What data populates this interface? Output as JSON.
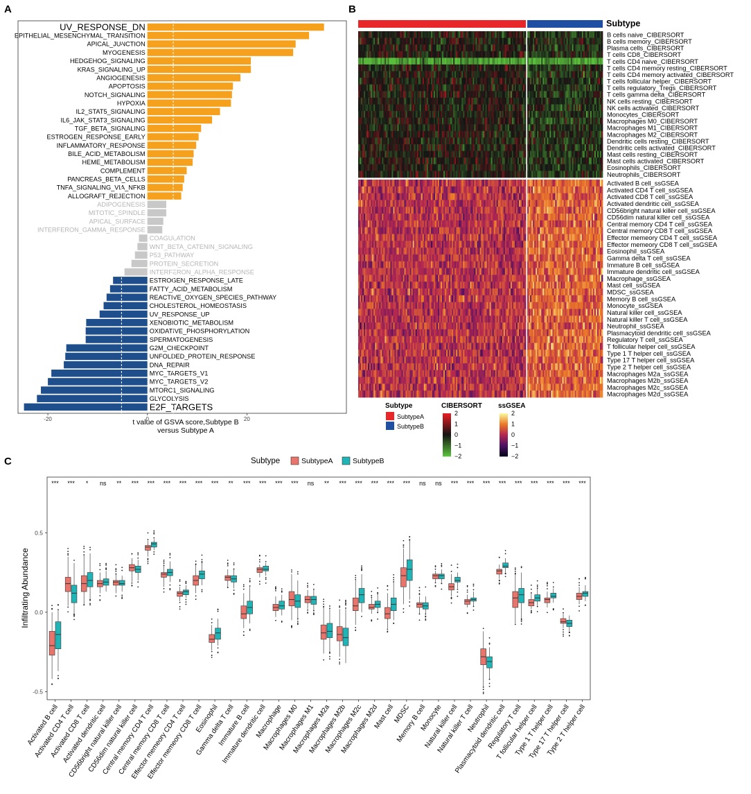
{
  "panels": {
    "a": "A",
    "b": "B",
    "c": "C"
  },
  "chart_data": [
    {
      "id": "A",
      "type": "bar",
      "orientation": "horizontal",
      "xlabel": "t value of GSVA score,Subtype B\nversus Subtype A",
      "xticks": [
        -20,
        0,
        20
      ],
      "xlim": [
        -26,
        40
      ],
      "threshold_lines": [
        -5.2,
        5.2
      ],
      "colors": {
        "up": "#F5A11E",
        "ns": "#C8C8C8",
        "down": "#1F4E8C"
      },
      "categories": [
        "UV_RESPONSE_DN",
        "EPITHELIAL_MESENCHYMAL_TRANSITION",
        "APICAL_JUNCTION",
        "MYOGENESIS",
        "HEDGEHOG_SIGNALING",
        "KRAS_SIGNALING_UP",
        "ANGIOGENESIS",
        "APOPTOSIS",
        "NOTCH_SIGNALING",
        "HYPOXIA",
        "IL2_STAT5_SIGNALING",
        "IL6_JAK_STAT3_SIGNALING",
        "TGF_BETA_SIGNALING",
        "ESTROGEN_RESPONSE_EARLY",
        "INFLAMMATORY_RESPONSE",
        "BILE_ACID_METABOLISM",
        "HEME_METABOLISM",
        "COMPLEMENT",
        "PANCREAS_BETA_CELLS",
        "TNFA_SIGNALING_VIA_NFKB",
        "ALLOGRAFT_REJECTION",
        "ADIPOGENESIS",
        "MITOTIC_SPINDLE",
        "APICAL_SURFACE",
        "INTERFERON_GAMMA_RESPONSE",
        "COAGULATION",
        "WNT_BETA_CATENIN_SIGNALING",
        "P53_PATHWAY",
        "PROTEIN_SECRETION",
        "INTERFERON_ALPHA_RESPONSE",
        "ESTROGEN_RESPONSE_LATE",
        "FATTY_ACID_METABOLISM",
        "REACTIVE_OXYGEN_SPECIES_PATHWAY",
        "CHOLESTEROL_HOMEOSTASIS",
        "UV_RESPONSE_UP",
        "XENOBIOTIC_METABOLISM",
        "OXIDATIVE_PHOSPHORYLATION",
        "SPERMATOGENESIS",
        "G2M_CHECKPOINT",
        "UNFOLDED_PROTEIN_RESPONSE",
        "DNA_REPAIR",
        "MYC_TARGETS_V1",
        "MYC_TARGETS_V2",
        "MTORC1_SIGNALING",
        "GLYCOLYSIS",
        "E2F_TARGETS"
      ],
      "values": [
        35.5,
        32.5,
        29.8,
        29.3,
        20.8,
        20.8,
        18.7,
        17.2,
        17.0,
        16.8,
        14.6,
        13.0,
        10.8,
        10.3,
        9.8,
        9.3,
        9.1,
        7.9,
        7.4,
        7.1,
        6.8,
        3.8,
        3.8,
        3.2,
        3.0,
        -1.7,
        -2.0,
        -2.5,
        -3.2,
        -4.6,
        -6.9,
        -7.5,
        -8.2,
        -8.8,
        -9.6,
        -12.3,
        -12.4,
        -12.4,
        -16.3,
        -16.5,
        -16.8,
        -19.3,
        -20.0,
        -21.4,
        -22.2,
        -24.8
      ]
    },
    {
      "id": "B",
      "type": "heatmap",
      "annotation_title": "Subtype",
      "groups": [
        {
          "name": "SubtypeA",
          "color": "#E8272A",
          "columns": 120
        },
        {
          "name": "SubtypeB",
          "color": "#1F4FA2",
          "columns": 54
        }
      ],
      "cibersort_rows": [
        "B cells naive_CIBERSORT",
        "B cells memory_CIBERSORT",
        "Plasma cells_CIBERSORT",
        "T cells CD8_CIBERSORT",
        "T cells CD4 naive_CIBERSORT",
        "T cells CD4 memory resting_CIBERSORT",
        "T cells CD4 memory activated_CIBERSORT",
        "T cells follicular helper_CIBERSORT",
        "T cells regulatory_Tregs_CIBERSORT",
        "T cells gamma delta_CIBERSORT",
        "NK cells resting_CIBERSORT",
        "NK cells activated_CIBERSORT",
        "Monocytes_CIBERSORT",
        "Macrophages M0_CIBERSORT",
        "Macrophages M1_CIBERSORT",
        "Macrophages M2_CIBERSORT",
        "Dendritic cells resting_CIBERSORT",
        "Dendritic cells activated_CIBERSORT",
        "Mast cells resting_CIBERSORT",
        "Mast cells activated_CIBERSORT",
        "Eosinophils_CIBERSORT",
        "Neutrophils_CIBERSORT"
      ],
      "ssgsea_rows": [
        "Activated B cell_ssGSEA",
        "Activated CD4 T cell_ssGSEA",
        "Activated CD8 T cell_ssGSEA",
        "Activated dendritic cell_ssGSEA",
        "CD56bright natural killer cell_ssGSEA",
        "CD56dim natural killer cell_ssGSEA",
        "Central memory CD4 T cell_ssGSEA",
        "Central memory CD8 T cell_ssGSEA",
        "Effector memeory CD4 T cell_ssGSEA",
        "Effector memeory CD8 T cell_ssGSEA",
        "Eosinophil_ssGSEA",
        "Gamma delta T cell_ssGSEA",
        "Immature  B cell_ssGSEA",
        "Immature dendritic cell_ssGSEA",
        "Macrophage_ssGSEA",
        "Mast cell_ssGSEA",
        "MDSC_ssGSEA",
        "Memory B cell_ssGSEA",
        "Monocyte_ssGSEA",
        "Natural killer cell_ssGSEA",
        "Natural killer T cell_ssGSEA",
        "Neutrophil_ssGSEA",
        "Plasmacytoid dendritic cell_ssGSEA",
        "Regulatory T cell_ssGSEA",
        "T follicular helper cell_ssGSEA",
        "Type 1 T helper cell_ssGSEA",
        "Type 17 T helper cell_ssGSEA",
        "Type 2 T helper cell_ssGSEA",
        "Macrophages M2a_ssGSEA",
        "Macrophages M2b_ssGSEA",
        "Macrophages M2c_ssGSEA",
        "Macrophages M2d_ssGSEA"
      ],
      "legend": {
        "subtype_title": "Subtype",
        "subtype_items": [
          "SubtypeA",
          "SubtypeB"
        ],
        "cibersort_title": "CIBERSORT",
        "cibersort_ticks": [
          "2",
          "1",
          "0",
          "−1",
          "−2"
        ],
        "ssgsea_title": "ssGSEA",
        "ssgsea_ticks": [
          "2",
          "1",
          "0",
          "−1",
          "−2"
        ]
      }
    },
    {
      "id": "C",
      "type": "box",
      "legend_title": "Subtype",
      "series": [
        {
          "name": "SubtypeA",
          "color": "#E8746B"
        },
        {
          "name": "SubtypeB",
          "color": "#1FB5B7"
        }
      ],
      "ylabel": "Infiltrating Abundance",
      "yticks": [
        -0.5,
        0.0,
        0.5
      ],
      "yticklabels": [
        "-0.5",
        "0.0",
        "0.5"
      ],
      "ylim": [
        -0.55,
        0.85
      ],
      "categories": [
        "Activated B cell",
        "Activated CD4 T cell",
        "Activated CD8 T cell",
        "Activated dendritic cell",
        "CD56bright natural killer cell",
        "CD56dim natural killer cell",
        "Central memory CD4 T cell",
        "Central memory CD8 T cell",
        "Effector memeory CD4 T cell",
        "Effector memeory CD8 T cell",
        "Eosinophil",
        "Gamma delta T cell",
        "Immature  B cell",
        "Immature dendritic cell",
        "Macrophage",
        "Macrophages M0",
        "Macrophages M1",
        "Macrophages M2a",
        "Macrophages M2b",
        "Macrophages M2c",
        "Macrophages M2d",
        "Mast cell",
        "MDSC",
        "Memory B cell",
        "Monocyte",
        "Natural killer cell",
        "Natural killer T cell",
        "Neutrophil",
        "Plasmacytoid dendritic cell",
        "Regulatory T cell",
        "T follicular helper cell",
        "Type 1 T helper cell",
        "Type 17 T helper cell",
        "Type 2 T helper cell"
      ],
      "significance": [
        "***",
        "***",
        "*",
        "ns",
        "**",
        "***",
        "***",
        "***",
        "***",
        "***",
        "***",
        "**",
        "***",
        "***",
        "***",
        "***",
        "ns",
        "**",
        "***",
        "***",
        "***",
        "***",
        "***",
        "ns",
        "ns",
        "***",
        "***",
        "***",
        "***",
        "***",
        "***",
        "***",
        "***",
        "***"
      ],
      "boxes_A": [
        [
          -0.42,
          -0.27,
          -0.21,
          -0.12,
          0.0
        ],
        [
          0.04,
          0.13,
          0.18,
          0.22,
          0.35
        ],
        [
          0.05,
          0.13,
          0.18,
          0.23,
          0.36
        ],
        [
          0.12,
          0.16,
          0.18,
          0.2,
          0.25
        ],
        [
          0.12,
          0.17,
          0.19,
          0.2,
          0.24
        ],
        [
          0.19,
          0.26,
          0.28,
          0.3,
          0.34
        ],
        [
          0.35,
          0.39,
          0.41,
          0.42,
          0.45
        ],
        [
          0.16,
          0.22,
          0.24,
          0.25,
          0.29
        ],
        [
          0.07,
          0.1,
          0.12,
          0.13,
          0.16
        ],
        [
          0.12,
          0.17,
          0.2,
          0.23,
          0.3
        ],
        [
          -0.24,
          -0.19,
          -0.17,
          -0.14,
          -0.08
        ],
        [
          0.16,
          0.2,
          0.22,
          0.23,
          0.27
        ],
        [
          -0.1,
          -0.04,
          -0.01,
          0.04,
          0.12
        ],
        [
          0.22,
          0.25,
          0.27,
          0.28,
          0.3
        ],
        [
          -0.03,
          0.01,
          0.03,
          0.05,
          0.1
        ],
        [
          -0.05,
          0.04,
          0.08,
          0.13,
          0.24
        ],
        [
          0.02,
          0.06,
          0.08,
          0.1,
          0.14
        ],
        [
          -0.26,
          -0.17,
          -0.13,
          -0.08,
          0.03
        ],
        [
          -0.28,
          -0.18,
          -0.14,
          -0.09,
          0.02
        ],
        [
          -0.08,
          0.01,
          0.04,
          0.09,
          0.2
        ],
        [
          -0.01,
          0.02,
          0.03,
          0.05,
          0.09
        ],
        [
          -0.1,
          -0.04,
          -0.01,
          0.03,
          0.12
        ],
        [
          0.05,
          0.16,
          0.23,
          0.28,
          0.4
        ],
        [
          -0.01,
          0.03,
          0.05,
          0.06,
          0.1
        ],
        [
          0.19,
          0.21,
          0.23,
          0.24,
          0.26
        ],
        [
          0.1,
          0.14,
          0.16,
          0.18,
          0.24
        ],
        [
          0.03,
          0.05,
          0.07,
          0.08,
          0.11
        ],
        [
          -0.47,
          -0.33,
          -0.28,
          -0.23,
          -0.12
        ],
        [
          0.21,
          0.24,
          0.26,
          0.27,
          0.3
        ],
        [
          -0.07,
          0.03,
          0.09,
          0.13,
          0.24
        ],
        [
          0.02,
          0.04,
          0.06,
          0.08,
          0.12
        ],
        [
          0.03,
          0.06,
          0.08,
          0.09,
          0.13
        ],
        [
          -0.1,
          -0.07,
          -0.06,
          -0.04,
          -0.01
        ],
        [
          0.05,
          0.08,
          0.1,
          0.12,
          0.16
        ]
      ],
      "boxes_B": [
        [
          -0.37,
          -0.23,
          -0.14,
          -0.06,
          0.01
        ],
        [
          -0.01,
          0.06,
          0.12,
          0.17,
          0.31
        ],
        [
          0.08,
          0.16,
          0.2,
          0.25,
          0.37
        ],
        [
          0.13,
          0.17,
          0.19,
          0.21,
          0.26
        ],
        [
          0.13,
          0.17,
          0.18,
          0.2,
          0.23
        ],
        [
          0.2,
          0.25,
          0.27,
          0.29,
          0.33
        ],
        [
          0.39,
          0.41,
          0.43,
          0.44,
          0.46
        ],
        [
          0.19,
          0.23,
          0.25,
          0.27,
          0.32
        ],
        [
          0.09,
          0.11,
          0.13,
          0.14,
          0.17
        ],
        [
          0.17,
          0.21,
          0.24,
          0.26,
          0.31
        ],
        [
          -0.21,
          -0.17,
          -0.13,
          -0.1,
          -0.04
        ],
        [
          0.15,
          0.19,
          0.21,
          0.23,
          0.27
        ],
        [
          -0.07,
          -0.01,
          0.03,
          0.07,
          0.16
        ],
        [
          0.23,
          0.26,
          0.27,
          0.29,
          0.31
        ],
        [
          -0.02,
          0.02,
          0.04,
          0.07,
          0.11
        ],
        [
          -0.04,
          0.03,
          0.07,
          0.11,
          0.2
        ],
        [
          0.01,
          0.05,
          0.08,
          0.1,
          0.14
        ],
        [
          -0.25,
          -0.16,
          -0.12,
          -0.07,
          0.02
        ],
        [
          -0.32,
          -0.21,
          -0.16,
          -0.1,
          0.02
        ],
        [
          0.0,
          0.06,
          0.11,
          0.15,
          0.24
        ],
        [
          0.0,
          0.03,
          0.05,
          0.07,
          0.11
        ],
        [
          -0.05,
          0.01,
          0.05,
          0.09,
          0.19
        ],
        [
          0.08,
          0.2,
          0.27,
          0.33,
          0.45
        ],
        [
          -0.01,
          0.02,
          0.04,
          0.06,
          0.1
        ],
        [
          0.19,
          0.21,
          0.23,
          0.24,
          0.27
        ],
        [
          0.15,
          0.19,
          0.2,
          0.22,
          0.25
        ],
        [
          0.04,
          0.07,
          0.08,
          0.09,
          0.13
        ],
        [
          -0.42,
          -0.35,
          -0.31,
          -0.28,
          -0.22
        ],
        [
          0.25,
          0.28,
          0.29,
          0.31,
          0.34
        ],
        [
          -0.04,
          0.06,
          0.11,
          0.15,
          0.25
        ],
        [
          0.04,
          0.07,
          0.09,
          0.11,
          0.15
        ],
        [
          0.06,
          0.09,
          0.1,
          0.12,
          0.15
        ],
        [
          -0.12,
          -0.09,
          -0.07,
          -0.05,
          -0.02
        ],
        [
          0.07,
          0.1,
          0.12,
          0.13,
          0.17
        ]
      ]
    }
  ]
}
